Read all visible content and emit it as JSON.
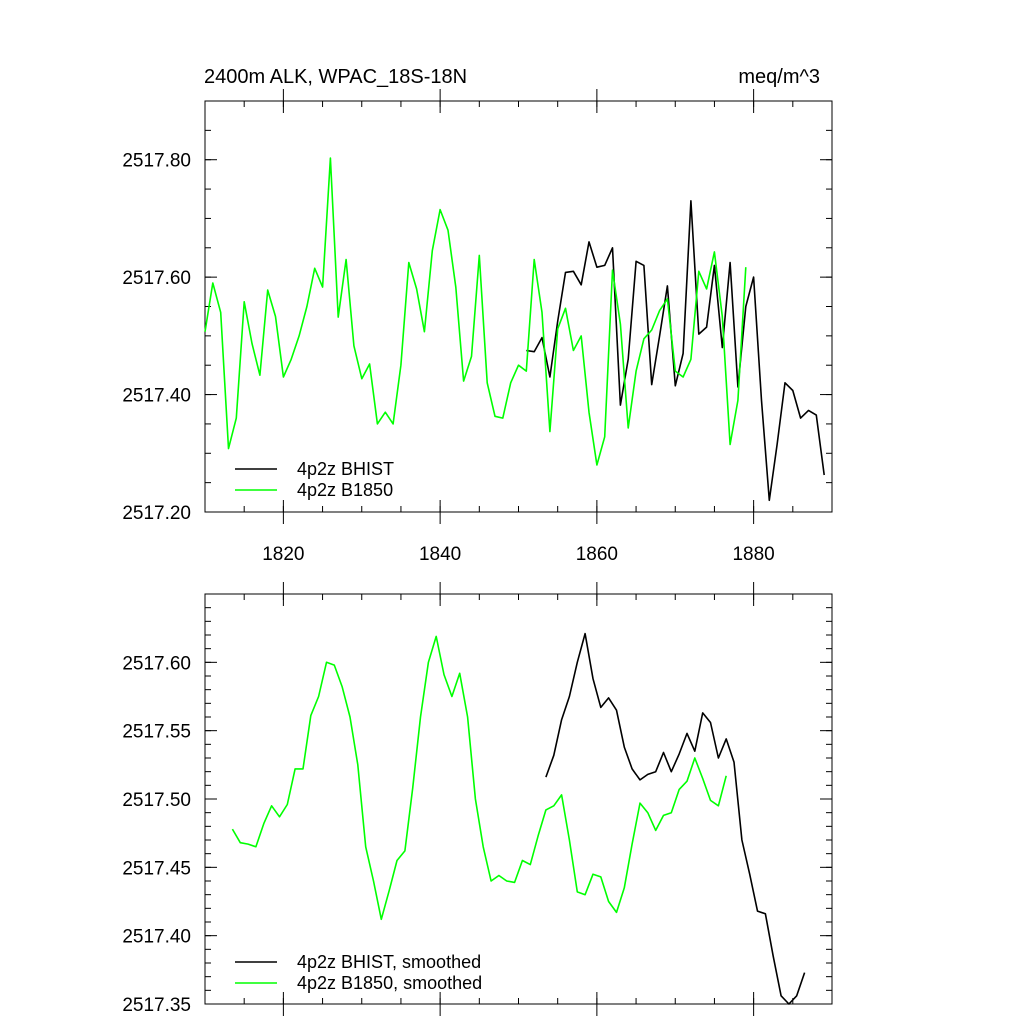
{
  "chart_data": [
    {
      "type": "line",
      "title_left": "2400m ALK, WPAC_18S-18N",
      "title_right": "meq/m^3",
      "xlim": [
        1810,
        1890
      ],
      "ylim": [
        2517.2,
        2517.9
      ],
      "xticks": [
        1820,
        1840,
        1860,
        1880
      ],
      "xtick_labels": [
        "1820",
        "1840",
        "1860",
        "1880"
      ],
      "yticks": [
        2517.2,
        2517.4,
        2517.6,
        2517.8
      ],
      "ytick_labels": [
        "2517.20",
        "2517.40",
        "2517.60",
        "2517.80"
      ],
      "legend_position": "bottom-left",
      "series": [
        {
          "name": "4p2z BHIST",
          "color": "#000000",
          "x": [
            1851,
            1852,
            1853,
            1854,
            1855,
            1856,
            1857,
            1858,
            1859,
            1860,
            1861,
            1862,
            1863,
            1864,
            1865,
            1866,
            1867,
            1868,
            1869,
            1870,
            1871,
            1872,
            1873,
            1874,
            1875,
            1876,
            1877,
            1878,
            1879,
            1880,
            1881,
            1882,
            1883,
            1884,
            1885,
            1886,
            1887,
            1888,
            1889
          ],
          "y": [
            2517.475,
            2517.473,
            2517.497,
            2517.43,
            2517.525,
            2517.608,
            2517.61,
            2517.587,
            2517.66,
            2517.617,
            2517.62,
            2517.65,
            2517.382,
            2517.46,
            2517.627,
            2517.62,
            2517.417,
            2517.5,
            2517.585,
            2517.415,
            2517.47,
            2517.73,
            2517.503,
            2517.515,
            2517.62,
            2517.48,
            2517.625,
            2517.413,
            2517.55,
            2517.6,
            2517.39,
            2517.22,
            2517.315,
            2517.42,
            2517.407,
            2517.36,
            2517.373,
            2517.365,
            2517.263
          ]
        },
        {
          "name": "4p2z B1850",
          "color": "#00ff00",
          "x": [
            1810,
            1811,
            1812,
            1813,
            1814,
            1815,
            1816,
            1817,
            1818,
            1819,
            1820,
            1821,
            1822,
            1823,
            1824,
            1825,
            1826,
            1827,
            1828,
            1829,
            1830,
            1831,
            1832,
            1833,
            1834,
            1835,
            1836,
            1837,
            1838,
            1839,
            1840,
            1841,
            1842,
            1843,
            1844,
            1845,
            1846,
            1847,
            1848,
            1849,
            1850,
            1851,
            1852,
            1853,
            1854,
            1855,
            1856,
            1857,
            1858,
            1859,
            1860,
            1861,
            1862,
            1863,
            1864,
            1865,
            1866,
            1867,
            1868,
            1869,
            1870,
            1871,
            1872,
            1873,
            1874,
            1875,
            1876,
            1877,
            1878,
            1879
          ],
          "y": [
            2517.507,
            2517.59,
            2517.54,
            2517.308,
            2517.36,
            2517.558,
            2517.487,
            2517.433,
            2517.578,
            2517.533,
            2517.43,
            2517.46,
            2517.5,
            2517.55,
            2517.615,
            2517.583,
            2517.803,
            2517.532,
            2517.63,
            2517.483,
            2517.427,
            2517.452,
            2517.35,
            2517.37,
            2517.35,
            2517.45,
            2517.625,
            2517.58,
            2517.507,
            2517.645,
            2517.715,
            2517.68,
            2517.583,
            2517.423,
            2517.465,
            2517.637,
            2517.42,
            2517.363,
            2517.36,
            2517.42,
            2517.45,
            2517.44,
            2517.63,
            2517.54,
            2517.337,
            2517.512,
            2517.547,
            2517.475,
            2517.5,
            2517.37,
            2517.28,
            2517.328,
            2517.612,
            2517.52,
            2517.343,
            2517.44,
            2517.495,
            2517.51,
            2517.543,
            2517.563,
            2517.44,
            2517.43,
            2517.46,
            2517.61,
            2517.58,
            2517.643,
            2517.533,
            2517.315,
            2517.39,
            2517.617
          ]
        }
      ]
    },
    {
      "type": "line",
      "xlim": [
        1810,
        1890
      ],
      "ylim": [
        2517.35,
        2517.65
      ],
      "xticks": [
        1820,
        1840,
        1860,
        1880
      ],
      "yticks": [
        2517.35,
        2517.4,
        2517.45,
        2517.5,
        2517.55,
        2517.6
      ],
      "ytick_labels": [
        "2517.35",
        "2517.40",
        "2517.45",
        "2517.50",
        "2517.55",
        "2517.60"
      ],
      "legend_position": "bottom-left",
      "series": [
        {
          "name": "4p2z BHIST, smoothed",
          "color": "#000000",
          "x": [
            1853.5,
            1854.5,
            1855.5,
            1856.5,
            1857.5,
            1858.5,
            1859.5,
            1860.5,
            1861.5,
            1862.5,
            1863.5,
            1864.5,
            1865.5,
            1866.5,
            1867.5,
            1868.5,
            1869.5,
            1870.5,
            1871.5,
            1872.5,
            1873.5,
            1874.5,
            1875.5,
            1876.5,
            1877.5,
            1878.5,
            1879.5,
            1880.5,
            1881.5,
            1882.5,
            1883.5,
            1884.5,
            1885.5,
            1886.5
          ],
          "y": [
            2517.516,
            2517.532,
            2517.558,
            2517.575,
            2517.6,
            2517.621,
            2517.588,
            2517.567,
            2517.574,
            2517.565,
            2517.538,
            2517.522,
            2517.514,
            2517.518,
            2517.52,
            2517.534,
            2517.52,
            2517.533,
            2517.548,
            2517.535,
            2517.563,
            2517.556,
            2517.53,
            2517.544,
            2517.527,
            2517.47,
            2517.445,
            2517.418,
            2517.416,
            2517.385,
            2517.356,
            2517.35,
            2517.356,
            2517.373
          ]
        },
        {
          "name": "4p2z B1850, smoothed",
          "color": "#00ff00",
          "x": [
            1813.5,
            1814.5,
            1815.5,
            1816.5,
            1817.5,
            1818.5,
            1819.5,
            1820.5,
            1821.5,
            1822.5,
            1823.5,
            1824.5,
            1825.5,
            1826.5,
            1827.5,
            1828.5,
            1829.5,
            1830.5,
            1831.5,
            1832.5,
            1833.5,
            1834.5,
            1835.5,
            1836.5,
            1837.5,
            1838.5,
            1839.5,
            1840.5,
            1841.5,
            1842.5,
            1843.5,
            1844.5,
            1845.5,
            1846.5,
            1847.5,
            1848.5,
            1849.5,
            1850.5,
            1851.5,
            1852.5,
            1853.5,
            1854.5,
            1855.5,
            1856.5,
            1857.5,
            1858.5,
            1859.5,
            1860.5,
            1861.5,
            1862.5,
            1863.5,
            1864.5,
            1865.5,
            1866.5,
            1867.5,
            1868.5,
            1869.5,
            1870.5,
            1871.5,
            1872.5,
            1873.5,
            1874.5,
            1875.5,
            1876.5
          ],
          "y": [
            2517.478,
            2517.468,
            2517.467,
            2517.465,
            2517.482,
            2517.495,
            2517.487,
            2517.496,
            2517.522,
            2517.522,
            2517.561,
            2517.575,
            2517.6,
            2517.598,
            2517.582,
            2517.56,
            2517.525,
            2517.465,
            2517.44,
            2517.412,
            2517.433,
            2517.455,
            2517.462,
            2517.508,
            2517.56,
            2517.6,
            2517.619,
            2517.591,
            2517.575,
            2517.592,
            2517.56,
            2517.5,
            2517.465,
            2517.44,
            2517.444,
            2517.44,
            2517.439,
            2517.455,
            2517.452,
            2517.473,
            2517.492,
            2517.495,
            2517.503,
            2517.47,
            2517.432,
            2517.43,
            2517.445,
            2517.443,
            2517.425,
            2517.417,
            2517.435,
            2517.467,
            2517.497,
            2517.49,
            2517.477,
            2517.488,
            2517.49,
            2517.507,
            2517.513,
            2517.53,
            2517.515,
            2517.499,
            2517.495,
            2517.517
          ]
        }
      ]
    }
  ]
}
